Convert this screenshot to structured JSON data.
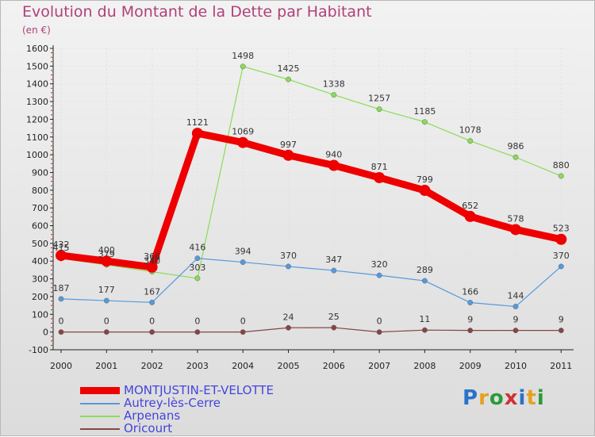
{
  "chart_data": {
    "type": "line",
    "title": "Evolution du Montant de la Dette par Habitant",
    "subtitle": "(en €)",
    "xlabel": "",
    "ylabel": "",
    "ylim": [
      -100,
      1600
    ],
    "yticks": [
      -100,
      0,
      100,
      200,
      300,
      400,
      500,
      600,
      700,
      800,
      900,
      1000,
      1100,
      1200,
      1300,
      1400,
      1500,
      1600
    ],
    "categories": [
      "2000",
      "2001",
      "2002",
      "2003",
      "2004",
      "2005",
      "2006",
      "2007",
      "2008",
      "2009",
      "2010",
      "2011"
    ],
    "legend_position": "bottom-left",
    "series": [
      {
        "name": "MONTJUSTIN-ET-VELOTTE",
        "color": "#ee0000",
        "text_color": "#4444dd",
        "values": [
          432,
          400,
          366,
          1121,
          1069,
          997,
          940,
          871,
          799,
          652,
          578,
          523
        ],
        "labels": [
          "432",
          "400",
          "366",
          "1121",
          "1069",
          "997",
          "940",
          "871",
          "799",
          "652",
          "578",
          "523"
        ]
      },
      {
        "name": "Autrey-lès-Cerre",
        "color": "#5599dd",
        "text_color": "#4444dd",
        "values": [
          187,
          177,
          167,
          416,
          394,
          370,
          347,
          320,
          289,
          166,
          144,
          370
        ],
        "labels": [
          "187",
          "177",
          "167",
          "416",
          "394",
          "370",
          "347",
          "320",
          "289",
          "166",
          "144",
          "370"
        ]
      },
      {
        "name": "Arpenans",
        "color": "#88dd55",
        "text_color": "#4444dd",
        "values": [
          415,
          379,
          340,
          303,
          1498,
          1425,
          1338,
          1257,
          1185,
          1078,
          986,
          880
        ],
        "labels": [
          "415",
          "379",
          "340",
          "303",
          "1498",
          "1425",
          "1338",
          "1257",
          "1185",
          "1078",
          "986",
          "880"
        ]
      },
      {
        "name": "Oricourt",
        "color": "#884444",
        "text_color": "#4444dd",
        "values": [
          0,
          0,
          0,
          0,
          0,
          24,
          25,
          0,
          11,
          9,
          9,
          9
        ],
        "labels": [
          "0",
          "0",
          "0",
          "0",
          "0",
          "24",
          "25",
          "0",
          "11",
          "9",
          "9",
          "9"
        ]
      }
    ]
  },
  "logo": {
    "letters": [
      "P",
      "r",
      "o",
      "x",
      "i",
      "t",
      "i"
    ],
    "colors": [
      "#2a72c8",
      "#e8a020",
      "#2a9a3a",
      "#cc3333",
      "#2a72c8",
      "#e8a020",
      "#2a9a3a"
    ]
  }
}
